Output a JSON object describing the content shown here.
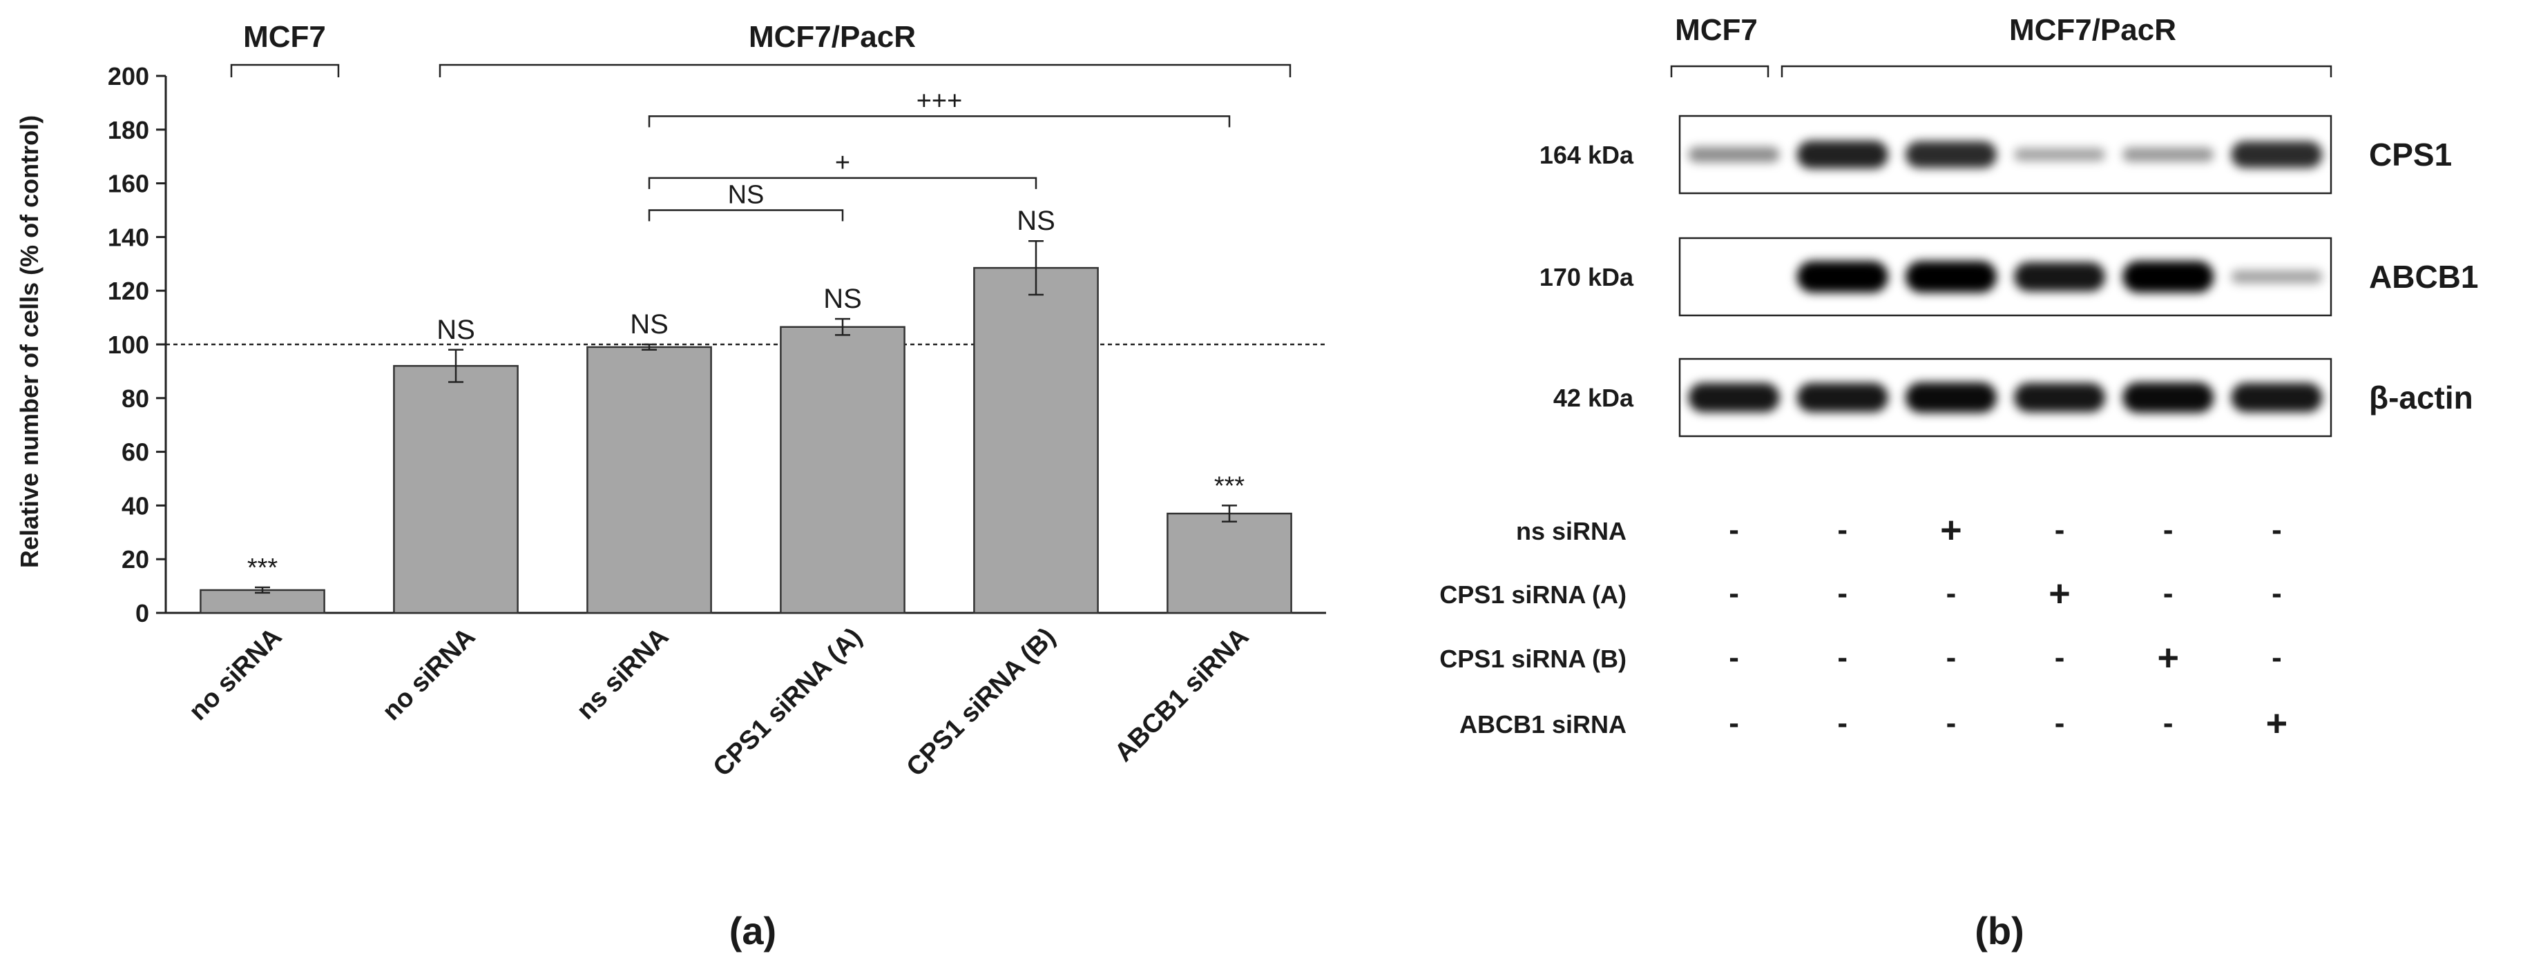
{
  "panel_a": {
    "label": "(a)",
    "ylabel": "Relative number of cells (% of control)",
    "group_labels": [
      "MCF7",
      "MCF7/PacR"
    ],
    "chart_data": {
      "type": "bar",
      "categories": [
        "no siRNA",
        "no siRNA",
        "ns siRNA",
        "CPS1 siRNA (A)",
        "CPS1 siRNA (B)",
        "ABCB1 siRNA"
      ],
      "values": [
        8.5,
        92,
        99,
        106.5,
        128.5,
        37
      ],
      "errors": [
        1,
        6,
        1,
        3,
        10,
        3
      ],
      "ylim": [
        0,
        200
      ],
      "yticks": [
        0,
        20,
        40,
        60,
        80,
        100,
        120,
        140,
        160,
        180,
        200
      ],
      "reference_line": 100,
      "bar_color": "#a6a6a6",
      "grid": false,
      "annotations": [
        "***",
        "NS",
        "NS",
        "NS",
        "NS",
        "***"
      ],
      "comparisons": [
        {
          "from": 2,
          "to": 3,
          "label": "NS",
          "y": 150
        },
        {
          "from": 2,
          "to": 4,
          "label": "+",
          "y": 162
        },
        {
          "from": 2,
          "to": 5,
          "label": "+++",
          "y": 185
        }
      ]
    }
  },
  "panel_b": {
    "label": "(b)",
    "group_labels": [
      "MCF7",
      "MCF7/PacR"
    ],
    "blots": [
      {
        "size": "164 kDa",
        "protein": "CPS1",
        "intensities": [
          0.35,
          0.85,
          0.8,
          0.25,
          0.3,
          0.8
        ]
      },
      {
        "size": "170 kDa",
        "protein": "ABCB1",
        "intensities": [
          0.0,
          1.0,
          1.0,
          0.9,
          1.0,
          0.25
        ]
      },
      {
        "size": "42 kDa",
        "protein": "β-actin",
        "intensities": [
          0.9,
          0.9,
          0.95,
          0.9,
          0.95,
          0.9
        ]
      }
    ],
    "conditions": [
      {
        "name": "ns siRNA",
        "marks": [
          "-",
          "-",
          "+",
          "-",
          "-",
          "-"
        ]
      },
      {
        "name": "CPS1 siRNA (A)",
        "marks": [
          "-",
          "-",
          "-",
          "+",
          "-",
          "-"
        ]
      },
      {
        "name": "CPS1 siRNA (B)",
        "marks": [
          "-",
          "-",
          "-",
          "-",
          "+",
          "-"
        ]
      },
      {
        "name": "ABCB1 siRNA",
        "marks": [
          "-",
          "-",
          "-",
          "-",
          "-",
          "+"
        ]
      }
    ]
  }
}
